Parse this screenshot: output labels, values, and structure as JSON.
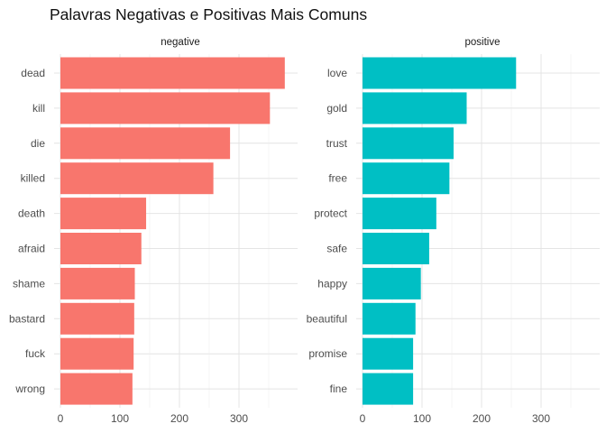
{
  "chart_data": {
    "type": "bar",
    "title": "Palavras Negativas e Positivas Mais Comuns",
    "orientation": "horizontal",
    "xlim": [
      0,
      380
    ],
    "x_ticks": [
      "0",
      "100",
      "200",
      "300"
    ],
    "grid": true,
    "legend": "none",
    "panels": [
      {
        "name": "negative",
        "color": "#F8766D",
        "categories": [
          "dead",
          "kill",
          "die",
          "killed",
          "death",
          "afraid",
          "shame",
          "bastard",
          "fuck",
          "wrong"
        ],
        "values": [
          377,
          352,
          285,
          257,
          144,
          136,
          125,
          124,
          123,
          121
        ]
      },
      {
        "name": "positive",
        "color": "#00BFC4",
        "categories": [
          "love",
          "gold",
          "trust",
          "free",
          "protect",
          "safe",
          "happy",
          "beautiful",
          "promise",
          "fine"
        ],
        "values": [
          258,
          175,
          153,
          146,
          124,
          112,
          98,
          89,
          85,
          85
        ]
      }
    ]
  }
}
